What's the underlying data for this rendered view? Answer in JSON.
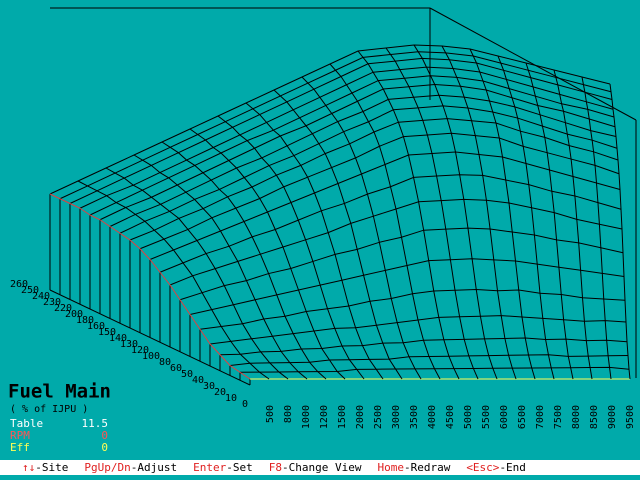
{
  "chart_data": {
    "type": "surface",
    "title": "Fuel Main",
    "subtitle": "( % of IJPU )",
    "x_categories": [
      500,
      800,
      1000,
      1200,
      1500,
      2000,
      2500,
      3000,
      3500,
      4000,
      4500,
      5000,
      5500,
      6000,
      6500,
      7000,
      7500,
      8000,
      8500,
      9000,
      9500
    ],
    "y_categories": [
      0,
      10,
      20,
      30,
      40,
      50,
      60,
      80,
      100,
      120,
      130,
      140,
      150,
      160,
      180,
      200,
      220,
      230,
      240,
      250,
      260
    ],
    "values": [
      [
        3,
        3,
        3,
        3,
        3,
        3,
        3,
        3,
        3,
        3,
        3,
        3,
        3,
        3,
        3,
        3,
        3,
        3,
        3,
        3,
        3
      ],
      [
        4,
        4,
        4,
        4,
        4,
        4,
        5,
        5,
        5,
        5,
        5,
        5,
        5,
        5,
        5,
        5,
        5,
        5,
        5,
        5,
        4
      ],
      [
        5,
        6,
        6,
        6,
        6,
        7,
        7,
        7,
        7,
        8,
        8,
        8,
        8,
        8,
        8,
        8,
        8,
        7,
        7,
        7,
        7
      ],
      [
        8,
        8,
        9,
        9,
        10,
        10,
        11,
        11,
        12,
        12,
        13,
        13,
        13,
        13,
        13,
        13,
        12,
        12,
        11,
        11,
        10
      ],
      [
        11,
        12,
        13,
        14,
        15,
        16,
        17,
        17,
        18,
        19,
        20,
        21,
        21,
        21,
        21,
        20,
        19,
        18,
        17,
        17,
        16
      ],
      [
        16,
        17,
        18,
        20,
        21,
        23,
        24,
        25,
        27,
        28,
        30,
        31,
        31,
        31,
        30,
        30,
        28,
        27,
        25,
        24,
        23
      ],
      [
        21,
        23,
        25,
        27,
        29,
        31,
        33,
        35,
        37,
        39,
        41,
        43,
        43,
        43,
        42,
        41,
        39,
        37,
        35,
        33,
        31
      ],
      [
        26,
        29,
        32,
        34,
        37,
        39,
        42,
        45,
        47,
        50,
        52,
        55,
        55,
        55,
        54,
        52,
        50,
        47,
        45,
        42,
        39
      ],
      [
        31,
        35,
        38,
        41,
        44,
        47,
        50,
        53,
        57,
        60,
        63,
        66,
        66,
        66,
        65,
        63,
        60,
        57,
        53,
        50,
        47
      ],
      [
        35,
        39,
        43,
        46,
        50,
        53,
        57,
        61,
        64,
        68,
        71,
        75,
        75,
        75,
        74,
        71,
        68,
        64,
        61,
        57,
        53
      ],
      [
        39,
        43,
        47,
        51,
        55,
        59,
        63,
        67,
        71,
        75,
        79,
        83,
        83,
        83,
        81,
        79,
        75,
        71,
        67,
        63,
        59
      ],
      [
        42,
        46,
        50,
        55,
        59,
        63,
        68,
        72,
        76,
        80,
        85,
        89,
        89,
        89,
        87,
        85,
        80,
        76,
        72,
        68,
        63
      ],
      [
        44,
        48,
        53,
        57,
        62,
        66,
        71,
        75,
        80,
        84,
        89,
        93,
        93,
        93,
        91,
        89,
        84,
        80,
        75,
        71,
        66
      ],
      [
        45,
        50,
        54,
        59,
        63,
        68,
        73,
        77,
        82,
        87,
        91,
        96,
        96,
        96,
        94,
        91,
        87,
        82,
        77,
        73,
        68
      ],
      [
        46,
        51,
        55,
        60,
        65,
        70,
        74,
        79,
        84,
        89,
        93,
        98,
        98,
        98,
        96,
        93,
        89,
        84,
        79,
        74,
        70
      ],
      [
        47,
        52,
        56,
        61,
        66,
        71,
        76,
        81,
        85,
        90,
        95,
        100,
        100,
        100,
        98,
        95,
        90,
        85,
        81,
        76,
        71
      ],
      [
        47,
        52,
        57,
        62,
        67,
        72,
        77,
        81,
        86,
        91,
        96,
        101,
        101,
        101,
        99,
        96,
        91,
        86,
        81,
        77,
        72
      ],
      [
        48,
        53,
        57,
        62,
        67,
        72,
        77,
        82,
        87,
        92,
        97,
        102,
        102,
        102,
        100,
        97,
        92,
        87,
        82,
        77,
        72
      ],
      [
        48,
        53,
        58,
        63,
        68,
        73,
        78,
        83,
        88,
        93,
        98,
        103,
        103,
        103,
        101,
        98,
        93,
        88,
        83,
        78,
        73
      ],
      [
        48,
        53,
        58,
        63,
        68,
        73,
        78,
        83,
        88,
        93,
        98,
        103,
        103,
        103,
        101,
        98,
        93,
        88,
        83,
        78,
        73
      ],
      [
        48,
        53,
        58,
        63,
        68,
        73,
        78,
        83,
        88,
        93,
        98,
        103,
        103,
        103,
        101,
        98,
        93,
        88,
        83,
        78,
        73
      ]
    ]
  },
  "readouts": [
    {
      "label": "Table",
      "value": 11.5
    },
    {
      "label": "RPM",
      "value": 0
    },
    {
      "label": "Eff",
      "value": 0
    }
  ],
  "footer": [
    {
      "key": "↑↓",
      "action": "-Site"
    },
    {
      "key": "PgUp/Dn",
      "action": "-Adjust"
    },
    {
      "key": "Enter",
      "action": "-Set"
    },
    {
      "key": "F8",
      "action": "-Change View"
    },
    {
      "key": "Home",
      "action": "-Redraw"
    },
    {
      "key": "<Esc>",
      "action": "-End"
    }
  ]
}
